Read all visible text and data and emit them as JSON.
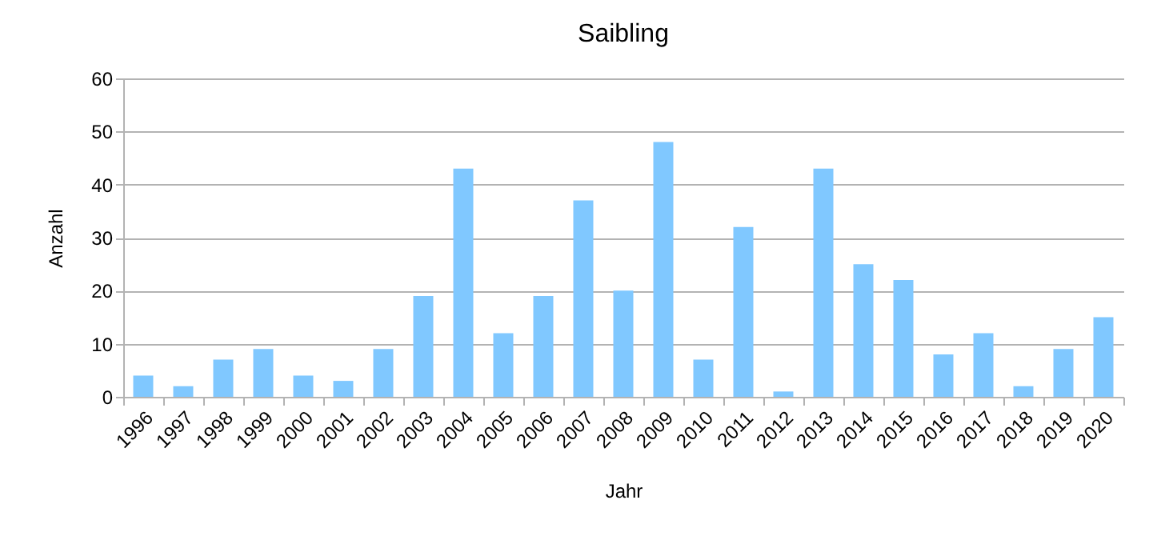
{
  "chart_data": {
    "type": "bar",
    "title": "Saibling",
    "xlabel": "Jahr",
    "ylabel": "Anzahl",
    "categories": [
      "1996",
      "1997",
      "1998",
      "1999",
      "2000",
      "2001",
      "2002",
      "2003",
      "2004",
      "2005",
      "2006",
      "2007",
      "2008",
      "2009",
      "2010",
      "2011",
      "2012",
      "2013",
      "2014",
      "2015",
      "2016",
      "2017",
      "2018",
      "2019",
      "2020"
    ],
    "values": [
      4,
      2,
      7,
      9,
      4,
      3,
      9,
      19,
      43,
      12,
      19,
      37,
      20,
      48,
      7,
      32,
      1,
      43,
      25,
      22,
      8,
      12,
      2,
      9,
      15
    ],
    "color": "#80c8ff",
    "ylim": [
      0,
      60
    ],
    "yticks": [
      0,
      10,
      20,
      30,
      40,
      50,
      60
    ],
    "grid": "y"
  }
}
